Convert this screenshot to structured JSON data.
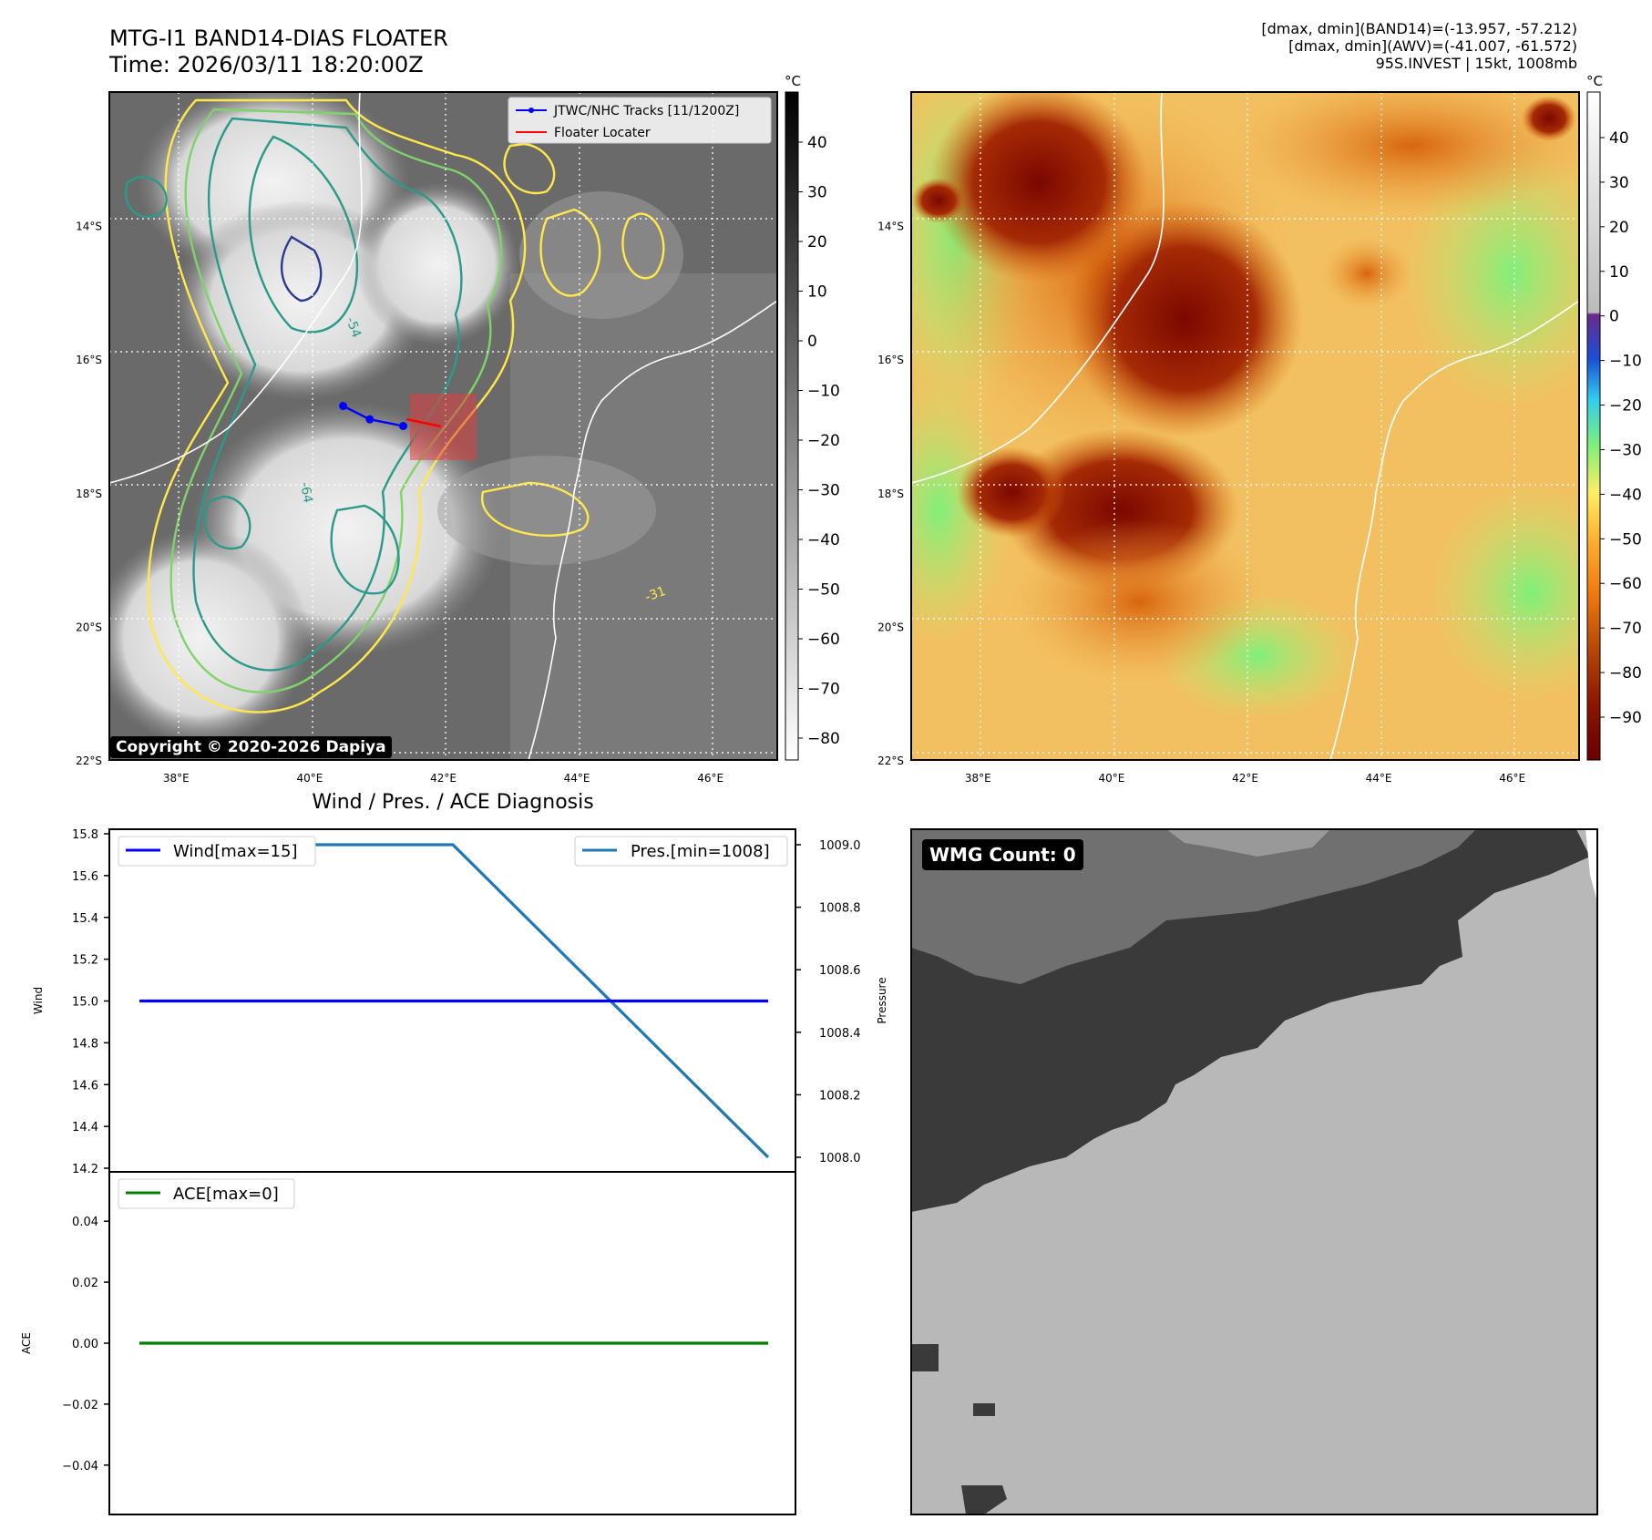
{
  "header": {
    "title_line1": "MTG-I1 BAND14-DIAS FLOATER",
    "title_line2": "Time: 2026/03/11 18:20:00Z",
    "info_line1": "[dmax, dmin](BAND14)=(-13.957, -57.212)",
    "info_line2": "[dmax, dmin](AWV)=(-41.007, -61.572)",
    "info_line3": "95S.INVEST | 15kt, 1008mb"
  },
  "map_axes": {
    "lat_labels": [
      "14°S",
      "16°S",
      "18°S",
      "20°S",
      "22°S"
    ],
    "lon_labels": [
      "38°E",
      "40°E",
      "42°E",
      "44°E",
      "46°E"
    ]
  },
  "ir_panel": {
    "colorbar_unit": "°C",
    "colorbar_ticks": [
      "40",
      "30",
      "20",
      "10",
      "0",
      "−10",
      "−20",
      "−30",
      "−40",
      "−50",
      "−60",
      "−70",
      "−80"
    ],
    "legend": [
      "JTWC/NHC Tracks [11/1200Z]",
      "Floater Locater"
    ],
    "contour_labels": [
      "-31",
      "-54",
      "-64"
    ],
    "copyright": "Copyright © 2020-2026 Dapiya",
    "track_points": [
      {
        "lon": 40.5,
        "lat": -16.7
      },
      {
        "lon": 40.9,
        "lat": -16.9
      },
      {
        "lon": 41.4,
        "lat": -17.0
      }
    ],
    "colors": {
      "track": "#0000ff",
      "locater": "#ff0000",
      "contour_outer": "#ffe84a",
      "contour_mid": "#7fd36a",
      "contour_inner": "#2a9a8a",
      "contour_core": "#2a3b8f"
    }
  },
  "awv_panel": {
    "colorbar_unit": "°C",
    "colorbar_ticks": [
      "40",
      "30",
      "20",
      "10",
      "0",
      "−10",
      "−20",
      "−30",
      "−40",
      "−50",
      "−60",
      "−70",
      "−80",
      "−90"
    ]
  },
  "diag_panel": {
    "title": "Wind / Pres. / ACE Diagnosis",
    "wind_axis_label": "Wind",
    "pressure_axis_label": "Pressure",
    "ace_axis_label": "ACE",
    "wind_legend": "Wind[max=15]",
    "pres_legend": "Pres.[min=1008]",
    "ace_legend": "ACE[max=0]",
    "wind_ticks": [
      "15.8",
      "15.6",
      "15.4",
      "15.2",
      "15.0",
      "14.8",
      "14.6",
      "14.4",
      "14.2"
    ],
    "pres_ticks": [
      "1009.0",
      "1008.8",
      "1008.6",
      "1008.4",
      "1008.2",
      "1008.0"
    ],
    "ace_ticks": [
      "0.04",
      "0.02",
      "0.00",
      "−0.02",
      "−0.04"
    ],
    "colors": {
      "wind": "#0000ff",
      "pressure": "#1f77b4",
      "ace": "#008000"
    }
  },
  "wmg_panel": {
    "label": "WMG Count: 0"
  },
  "chart_data": [
    {
      "type": "line",
      "title": "Wind / Pres. / ACE Diagnosis",
      "x": [
        0,
        1,
        2
      ],
      "series": [
        {
          "name": "Wind[max=15]",
          "axis": "left",
          "values": [
            15,
            15,
            15
          ]
        },
        {
          "name": "Pres.[min=1008]",
          "axis": "right",
          "values": [
            1009,
            1009,
            1008
          ]
        }
      ],
      "ylabel": "Wind",
      "ylim": [
        14.2,
        15.8
      ],
      "y2label": "Pressure",
      "y2lim": [
        1007.98,
        1009.02
      ]
    },
    {
      "type": "line",
      "x": [
        0,
        1,
        2
      ],
      "series": [
        {
          "name": "ACE[max=0]",
          "values": [
            0,
            0,
            0
          ]
        }
      ],
      "ylabel": "ACE",
      "ylim": [
        -0.055,
        0.055
      ]
    }
  ]
}
